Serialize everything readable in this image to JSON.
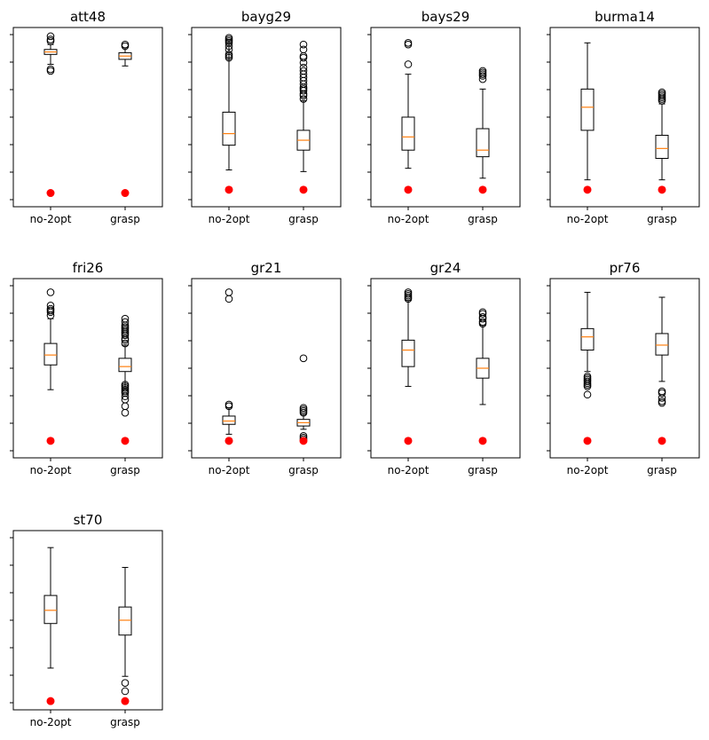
{
  "chart_data": [
    {
      "type": "box",
      "title": "att48",
      "categories": [
        "no-2opt",
        "grasp"
      ],
      "ylim": [
        0,
        100
      ],
      "boxes": [
        {
          "name": "no-2opt",
          "whisker_low": 82,
          "q1": 88,
          "median": 89.5,
          "q3": 91,
          "whisker_high": 94,
          "outliers": [
            78,
            79,
            96,
            97,
            99
          ]
        },
        {
          "name": "grasp",
          "whisker_low": 81,
          "q1": 85,
          "median": 87,
          "q3": 89,
          "whisker_high": 92,
          "outliers": [
            93,
            94
          ]
        }
      ],
      "optimal": [
        4,
        4
      ]
    },
    {
      "type": "box",
      "title": "bayg29",
      "categories": [
        "no-2opt",
        "grasp"
      ],
      "ylim": [
        0,
        100
      ],
      "boxes": [
        {
          "name": "no-2opt",
          "whisker_low": 18,
          "q1": 33,
          "median": 40,
          "q3": 53,
          "whisker_high": 97,
          "outliers": [
            86,
            87,
            88,
            91,
            93,
            95,
            96,
            97,
            98
          ]
        },
        {
          "name": "grasp",
          "whisker_low": 17,
          "q1": 30,
          "median": 36,
          "q3": 42,
          "whisker_high": 60,
          "outliers": [
            61,
            63,
            64,
            66,
            67,
            68,
            70,
            72,
            74,
            76,
            78,
            80,
            83,
            86,
            87,
            91,
            94
          ]
        }
      ],
      "optimal": [
        6,
        6
      ]
    },
    {
      "type": "box",
      "title": "bays29",
      "categories": [
        "no-2opt",
        "grasp"
      ],
      "ylim": [
        0,
        100
      ],
      "boxes": [
        {
          "name": "no-2opt",
          "whisker_low": 19,
          "q1": 30,
          "median": 38,
          "q3": 50,
          "whisker_high": 76,
          "outliers": [
            82,
            94,
            95
          ]
        },
        {
          "name": "grasp",
          "whisker_low": 13,
          "q1": 26,
          "median": 30,
          "q3": 43,
          "whisker_high": 67,
          "outliers": [
            73,
            75,
            76,
            77,
            78
          ]
        }
      ],
      "optimal": [
        6,
        6
      ]
    },
    {
      "type": "box",
      "title": "burma14",
      "categories": [
        "no-2opt",
        "grasp"
      ],
      "ylim": [
        0,
        100
      ],
      "boxes": [
        {
          "name": "no-2opt",
          "whisker_low": 12,
          "q1": 42,
          "median": 56,
          "q3": 67,
          "whisker_high": 95,
          "outliers": []
        },
        {
          "name": "grasp",
          "whisker_low": 12,
          "q1": 25,
          "median": 31,
          "q3": 39,
          "whisker_high": 58,
          "outliers": [
            60,
            61,
            62,
            63,
            64,
            65
          ]
        }
      ],
      "optimal": [
        6,
        6
      ]
    },
    {
      "type": "box",
      "title": "fri26",
      "categories": [
        "no-2opt",
        "grasp"
      ],
      "ylim": [
        0,
        100
      ],
      "boxes": [
        {
          "name": "no-2opt",
          "whisker_low": 37,
          "q1": 52,
          "median": 58,
          "q3": 65,
          "whisker_high": 80,
          "outliers": [
            82,
            84,
            85,
            86,
            88,
            96
          ]
        },
        {
          "name": "grasp",
          "whisker_low": 37,
          "q1": 48,
          "median": 51,
          "q3": 56,
          "whisker_high": 64,
          "outliers": [
            23,
            27,
            31,
            33,
            35,
            36,
            37,
            38,
            39,
            40,
            65,
            67,
            68,
            70,
            71,
            72,
            73,
            74,
            75,
            76,
            78,
            80
          ]
        }
      ],
      "optimal": [
        6,
        6
      ]
    },
    {
      "type": "box",
      "title": "gr21",
      "categories": [
        "no-2opt",
        "grasp"
      ],
      "ylim": [
        0,
        100
      ],
      "boxes": [
        {
          "name": "no-2opt",
          "whisker_low": 10,
          "q1": 16,
          "median": 18,
          "q3": 21,
          "whisker_high": 26,
          "outliers": [
            6,
            27,
            28,
            92,
            96
          ]
        },
        {
          "name": "grasp",
          "whisker_low": 13,
          "q1": 15,
          "median": 17,
          "q3": 19,
          "whisker_high": 22,
          "outliers": [
            7,
            8,
            9,
            23,
            24,
            25,
            26,
            56
          ]
        }
      ],
      "optimal": [
        6,
        6
      ]
    },
    {
      "type": "box",
      "title": "gr24",
      "categories": [
        "no-2opt",
        "grasp"
      ],
      "ylim": [
        0,
        100
      ],
      "boxes": [
        {
          "name": "no-2opt",
          "whisker_low": 39,
          "q1": 51,
          "median": 61,
          "q3": 67,
          "whisker_high": 91,
          "outliers": [
            92,
            93,
            94,
            95,
            96
          ]
        },
        {
          "name": "grasp",
          "whisker_low": 28,
          "q1": 44,
          "median": 50,
          "q3": 56,
          "whisker_high": 76,
          "outliers": [
            77,
            78,
            80,
            81,
            83,
            84
          ]
        }
      ],
      "optimal": [
        6,
        6
      ]
    },
    {
      "type": "box",
      "title": "pr76",
      "categories": [
        "no-2opt",
        "grasp"
      ],
      "ylim": [
        0,
        100
      ],
      "boxes": [
        {
          "name": "no-2opt",
          "whisker_low": 48,
          "q1": 61,
          "median": 69,
          "q3": 74,
          "whisker_high": 96,
          "outliers": [
            34,
            39,
            40,
            41,
            42,
            43,
            44,
            45
          ]
        },
        {
          "name": "grasp",
          "whisker_low": 42,
          "q1": 58,
          "median": 64,
          "q3": 71,
          "whisker_high": 93,
          "outliers": [
            29,
            30,
            32,
            35,
            36
          ]
        }
      ],
      "optimal": [
        6,
        6
      ]
    },
    {
      "type": "box",
      "title": "st70",
      "categories": [
        "no-2opt",
        "grasp"
      ],
      "ylim": [
        0,
        100
      ],
      "boxes": [
        {
          "name": "no-2opt",
          "whisker_low": 21,
          "q1": 48,
          "median": 56,
          "q3": 65,
          "whisker_high": 94,
          "outliers": []
        },
        {
          "name": "grasp",
          "whisker_low": 16,
          "q1": 41,
          "median": 50,
          "q3": 58,
          "whisker_high": 82,
          "outliers": [
            7,
            12
          ]
        }
      ],
      "optimal": [
        1,
        1
      ]
    }
  ],
  "colors": {
    "box": "#000000",
    "median": "#ff7f0e",
    "optimal_marker": "#ff0000"
  }
}
